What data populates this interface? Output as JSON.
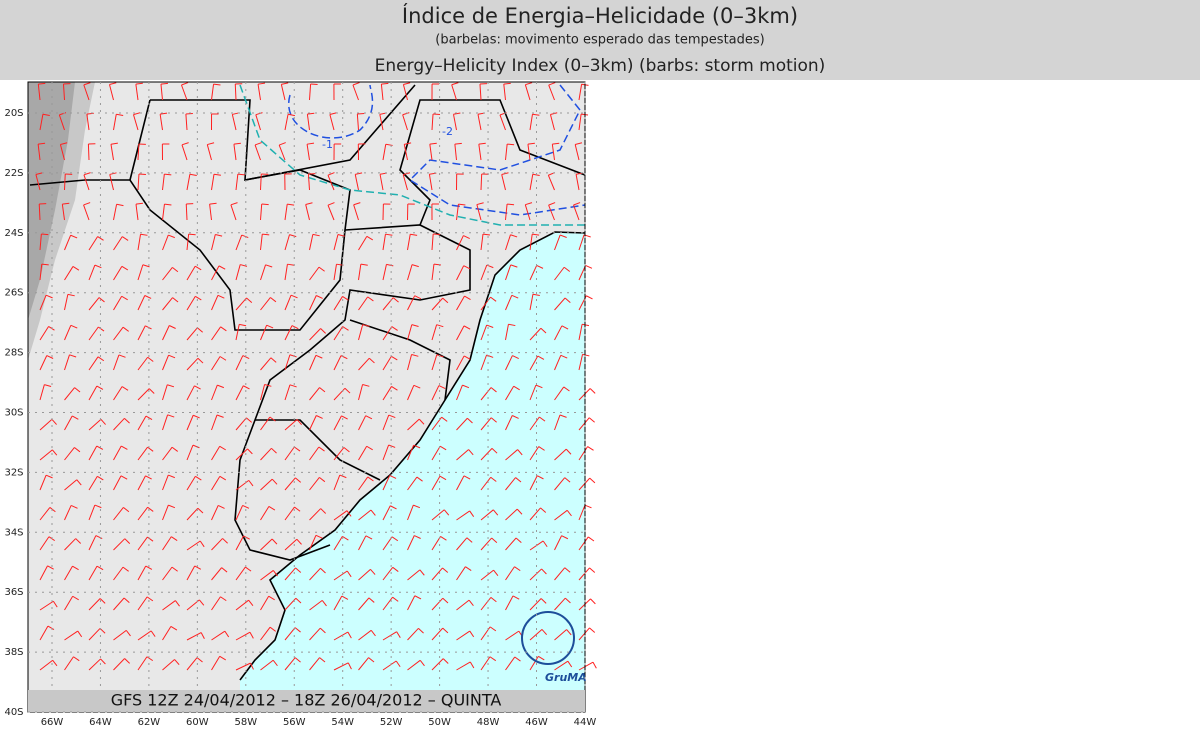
{
  "header": {
    "title": "Índice de Energia–Helicidade (0–3km)",
    "subtitle": "(barbelas: movimento esperado das tempestades)",
    "title_en": "Energy–Helicity Index (0–3km) (barbs: storm motion)"
  },
  "map": {
    "lat_labels": [
      "20S",
      "22S",
      "24S",
      "26S",
      "28S",
      "30S",
      "32S",
      "34S",
      "36S",
      "38S",
      "40S"
    ],
    "lon_labels": [
      "66W",
      "64W",
      "62W",
      "60W",
      "58W",
      "56W",
      "54W",
      "52W",
      "50W",
      "48W",
      "46W",
      "44W"
    ],
    "contour_labels": [
      "-1",
      "-2"
    ],
    "footer": "GFS 12Z 24/04/2012 – 18Z 26/04/2012 – QUINTA",
    "logo": "GruMA"
  }
}
